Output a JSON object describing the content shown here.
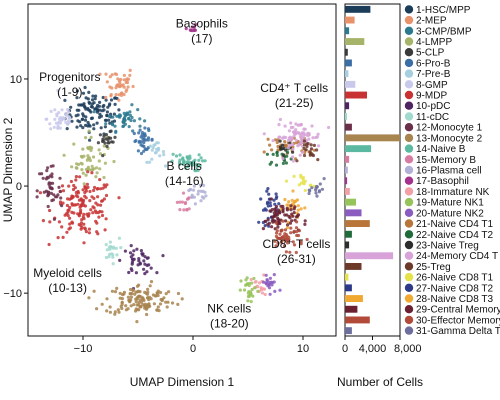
{
  "chart_data": [
    {
      "type": "scatter",
      "title": "",
      "xlabel": "UMAP Dimension 1",
      "ylabel": "UMAP Dimension 2",
      "xlim": [
        -15,
        13
      ],
      "ylim": [
        -14,
        17
      ],
      "xticks": [
        -10,
        0,
        10
      ],
      "yticks": [
        -10,
        0,
        10
      ],
      "xtick_labels": [
        "−10",
        "0",
        "10"
      ],
      "ytick_labels": [
        "−10",
        "0",
        "10"
      ],
      "grid": false,
      "annotations": [
        {
          "line1": "Basophils",
          "line2": "(17)",
          "x": 0.8,
          "y": 14.8
        },
        {
          "line1": "Progenitors",
          "line2": "(1-9)",
          "x": -11.2,
          "y": 9.8
        },
        {
          "line1": "CD4⁺ T cells",
          "line2": "(21-25)",
          "x": 9.2,
          "y": 8.8
        },
        {
          "line1": "B cells",
          "line2": "(14-16)",
          "x": -0.8,
          "y": 1.5
        },
        {
          "line1": "CD8⁺ T cells",
          "line2": "(26-31)",
          "x": 9.4,
          "y": -5.8
        },
        {
          "line1": "Myeloid cells",
          "line2": "(10-13)",
          "x": -11.4,
          "y": -8.5
        },
        {
          "line1": "NK cells",
          "line2": "(18-20)",
          "x": 3.3,
          "y": -11.8
        }
      ],
      "clusters": [
        {
          "id": 1,
          "name": "1-HSC/MPP",
          "color": "#1c3d5a",
          "cx": -9.0,
          "cy": 6.8,
          "sx": 1.6,
          "sy": 1.2,
          "n": 110
        },
        {
          "id": 2,
          "name": "2-MEP",
          "color": "#e8926b",
          "cx": -6.8,
          "cy": 9.5,
          "sx": 0.9,
          "sy": 1.1,
          "n": 45
        },
        {
          "id": 3,
          "name": "3-CMP/BMP",
          "color": "#2c7a90",
          "cx": -6.2,
          "cy": 6.3,
          "sx": 1.0,
          "sy": 0.7,
          "n": 45
        },
        {
          "id": 4,
          "name": "4-LMPP",
          "color": "#a6b46a",
          "cx": -9.4,
          "cy": 2.6,
          "sx": 1.0,
          "sy": 1.4,
          "n": 55
        },
        {
          "id": 5,
          "name": "5-CLP",
          "color": "#3a3a3a",
          "cx": -7.8,
          "cy": 4.2,
          "sx": 0.5,
          "sy": 0.5,
          "n": 20
        },
        {
          "id": 6,
          "name": "6-Pro-B",
          "color": "#3b6ea5",
          "cx": -4.5,
          "cy": 4.3,
          "sx": 0.6,
          "sy": 0.6,
          "n": 35
        },
        {
          "id": 7,
          "name": "7-Pre-B",
          "color": "#a6cfe0",
          "cx": -3.4,
          "cy": 3.1,
          "sx": 0.5,
          "sy": 0.6,
          "n": 20
        },
        {
          "id": 8,
          "name": "8-GMP",
          "color": "#c9c9ec",
          "cx": -12.0,
          "cy": 6.3,
          "sx": 0.8,
          "sy": 1.0,
          "n": 40
        },
        {
          "id": 9,
          "name": "9-MDP",
          "color": "#c83232",
          "cx": -10.0,
          "cy": -2.0,
          "sx": 1.7,
          "sy": 1.7,
          "n": 150
        },
        {
          "id": 10,
          "name": "10-pDC",
          "color": "#4e2462",
          "cx": -5.0,
          "cy": -7.0,
          "sx": 0.9,
          "sy": 0.8,
          "n": 40
        },
        {
          "id": 11,
          "name": "11-cDC",
          "color": "#a2d9cf",
          "cx": -7.5,
          "cy": -6.0,
          "sx": 0.5,
          "sy": 0.7,
          "n": 20
        },
        {
          "id": 12,
          "name": "12-Monocyte 1",
          "color": "#6b2f4a",
          "cx": -13.0,
          "cy": -0.5,
          "sx": 0.7,
          "sy": 1.8,
          "n": 45
        },
        {
          "id": 13,
          "name": "13-Monocyte 2",
          "color": "#a8844f",
          "cx": -4.8,
          "cy": -10.6,
          "sx": 2.0,
          "sy": 0.9,
          "n": 130
        },
        {
          "id": 14,
          "name": "14-Naive B",
          "color": "#5ab9a0",
          "cx": -0.6,
          "cy": 2.2,
          "sx": 0.9,
          "sy": 0.5,
          "n": 40
        },
        {
          "id": 15,
          "name": "15-Memory B",
          "color": "#d97ba0",
          "cx": -0.8,
          "cy": -1.5,
          "sx": 0.4,
          "sy": 0.6,
          "n": 15
        },
        {
          "id": 16,
          "name": "16-Plasma cell",
          "color": "#b0b0d8",
          "cx": 0.4,
          "cy": -0.6,
          "sx": 0.5,
          "sy": 0.6,
          "n": 20
        },
        {
          "id": 17,
          "name": "17-Basophil",
          "color": "#a3338c",
          "cx": -0.1,
          "cy": 14.6,
          "sx": 0.3,
          "sy": 0.3,
          "n": 10
        },
        {
          "id": 18,
          "name": "18-Immature NK",
          "color": "#f2a0a6",
          "cx": 6.1,
          "cy": -9.5,
          "sx": 0.5,
          "sy": 0.7,
          "n": 20
        },
        {
          "id": 19,
          "name": "19-Mature NK1",
          "color": "#96c35a",
          "cx": 5.2,
          "cy": -9.8,
          "sx": 0.5,
          "sy": 0.8,
          "n": 25
        },
        {
          "id": 20,
          "name": "20-Mature NK2",
          "color": "#8a5cc0",
          "cx": 7.0,
          "cy": -9.2,
          "sx": 0.5,
          "sy": 0.7,
          "n": 20
        },
        {
          "id": 21,
          "name": "21-Naive CD4 T1",
          "color": "#b8763a",
          "cx": 8.8,
          "cy": 3.8,
          "sx": 1.3,
          "sy": 0.6,
          "n": 40
        },
        {
          "id": 22,
          "name": "22-Naive CD4 T2",
          "color": "#1f6b3a",
          "cx": 8.0,
          "cy": 2.8,
          "sx": 0.8,
          "sy": 0.5,
          "n": 20
        },
        {
          "id": 23,
          "name": "23-Naive Treg",
          "color": "#2d2d2d",
          "cx": 8.2,
          "cy": 3.5,
          "sx": 0.5,
          "sy": 0.4,
          "n": 10
        },
        {
          "id": 24,
          "name": "24-Memory CD4 T",
          "color": "#d7a3d8",
          "cx": 9.6,
          "cy": 4.6,
          "sx": 1.3,
          "sy": 0.9,
          "n": 80
        },
        {
          "id": 25,
          "name": "25-Treg",
          "color": "#6d3a2a",
          "cx": 10.8,
          "cy": 3.2,
          "sx": 0.6,
          "sy": 0.6,
          "n": 20
        },
        {
          "id": 26,
          "name": "26-Naive CD8 T1",
          "color": "#e6e24a",
          "cx": 10.0,
          "cy": 0.4,
          "sx": 0.5,
          "sy": 0.5,
          "n": 15
        },
        {
          "id": 27,
          "name": "27-Naive CD8 T2",
          "color": "#2d3a8a",
          "cx": 7.0,
          "cy": -2.0,
          "sx": 0.6,
          "sy": 1.0,
          "n": 35
        },
        {
          "id": 28,
          "name": "28-Naive CD8 T3",
          "color": "#f0a830",
          "cx": 9.2,
          "cy": -2.0,
          "sx": 0.6,
          "sy": 0.8,
          "n": 25
        },
        {
          "id": 29,
          "name": "29-Central Memory",
          "color": "#6a2030",
          "cx": 8.0,
          "cy": -3.0,
          "sx": 1.0,
          "sy": 1.0,
          "n": 70
        },
        {
          "id": 30,
          "name": "30-Effector Memory",
          "color": "#b24a3a",
          "cx": 8.5,
          "cy": -4.8,
          "sx": 1.0,
          "sy": 0.7,
          "n": 50
        },
        {
          "id": 31,
          "name": "31-Gamma Delta T",
          "color": "#6e6e9e",
          "cx": 11.4,
          "cy": -0.4,
          "sx": 0.4,
          "sy": 0.6,
          "n": 15
        }
      ]
    },
    {
      "type": "bar",
      "orientation": "horizontal",
      "xlabel": "Number of Cells",
      "ylabel": "",
      "xlim": [
        0,
        8000
      ],
      "xticks": [
        0,
        4000,
        8000
      ],
      "xtick_labels": [
        "0",
        "4,000",
        "8,000"
      ],
      "categories": [
        "1-HSC/MPP",
        "2-MEP",
        "3-CMP/BMP",
        "4-LMPP",
        "5-CLP",
        "6-Pro-B",
        "7-Pre-B",
        "8-GMP",
        "9-MDP",
        "10-pDC",
        "11-cDC",
        "12-Monocyte 1",
        "13-Monocyte 2",
        "14-Naive B",
        "15-Memory B",
        "16-Plasma cell",
        "17-Basophil",
        "18-Immature NK",
        "19-Mature NK1",
        "20-Mature NK2",
        "21-Naive CD4 T1",
        "22-Naive CD4 T2",
        "23-Naive Treg",
        "24-Memory CD4 T",
        "25-Treg",
        "26-Naive CD8 T1",
        "27-Naive CD8 T2",
        "28-Naive CD8 T3",
        "29-Central Memory",
        "30-Effector Memory",
        "31-Gamma Delta T"
      ],
      "values": [
        3700,
        1400,
        600,
        2800,
        400,
        1000,
        500,
        1500,
        3200,
        600,
        300,
        1000,
        8000,
        3800,
        600,
        400,
        300,
        700,
        1600,
        2400,
        3600,
        1000,
        600,
        7000,
        2400,
        500,
        1000,
        2600,
        1800,
        3600,
        1000
      ]
    }
  ]
}
